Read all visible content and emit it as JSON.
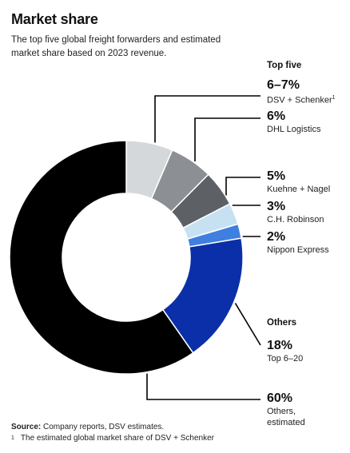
{
  "chart_data": {
    "type": "pie",
    "donut": true,
    "title": "Market share",
    "subtitle": "The top five global freight forwarders and estimated market share based on 2023 revenue.",
    "groups": [
      "Top five",
      "Others"
    ],
    "slices": [
      {
        "value": 6.5,
        "value_label": "6–7%",
        "label": "DSV + Schenker",
        "footnote_ref": "1",
        "group": "Top five",
        "color": "#d5d8db"
      },
      {
        "value": 6,
        "value_label": "6%",
        "label": "DHL Logistics",
        "group": "Top five",
        "color": "#8c9094"
      },
      {
        "value": 5,
        "value_label": "5%",
        "label": "Kuehne + Nagel",
        "group": "Top five",
        "color": "#5d6166"
      },
      {
        "value": 3,
        "value_label": "3%",
        "label": "C.H. Robinson",
        "group": "Top five",
        "color": "#c6e2f2"
      },
      {
        "value": 2,
        "value_label": "2%",
        "label": "Nippon Express",
        "group": "Top five",
        "color": "#3f7fe0"
      },
      {
        "value": 18,
        "value_label": "18%",
        "label": "Top 6–20",
        "group": "Others",
        "color": "#0a2fa8"
      },
      {
        "value": 60,
        "value_label": "60%",
        "label": "Others, estimated",
        "group": "Others",
        "color": "#000000"
      }
    ],
    "source_label": "Source:",
    "source_text": "Company reports, DSV estimates.",
    "footnote_mark": "1",
    "footnote_text": "The estimated global market share of DSV + Schenker"
  }
}
